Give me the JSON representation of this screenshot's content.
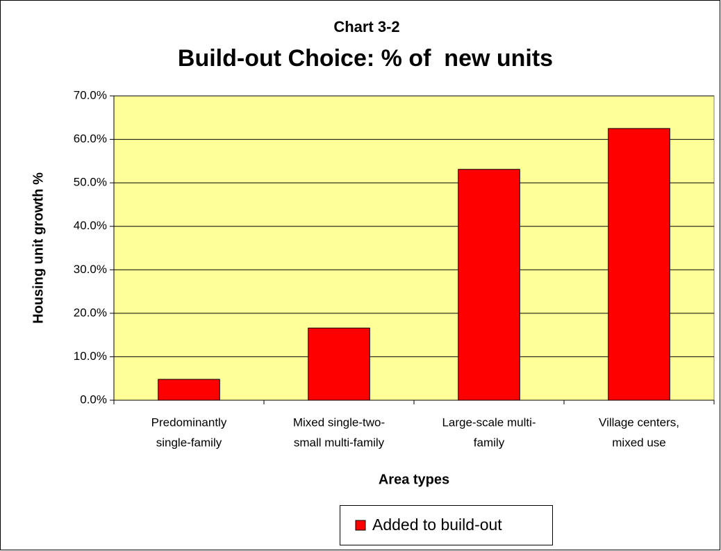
{
  "chart_data": {
    "type": "bar",
    "subtitle": "Chart 3-2",
    "title": "Build-out Choice: % of  new units",
    "y_label": "Housing unit growth %",
    "x_label": "Area types",
    "categories": [
      [
        "Predominantly",
        "single-family"
      ],
      [
        "Mixed single-two-",
        "small multi-family"
      ],
      [
        "Large-scale multi-",
        "family"
      ],
      [
        "Village centers,",
        "mixed use"
      ]
    ],
    "series": [
      {
        "name": "Added to build-out",
        "color": "#ff0000",
        "values": [
          4.8,
          16.6,
          53.1,
          62.5
        ]
      }
    ],
    "ylim": [
      0,
      70
    ],
    "yticks": [
      {
        "value": 0,
        "label": "0.0%"
      },
      {
        "value": 10,
        "label": "10.0%"
      },
      {
        "value": 20,
        "label": "20.0%"
      },
      {
        "value": 30,
        "label": "30.0%"
      },
      {
        "value": 40,
        "label": "40.0%"
      },
      {
        "value": 50,
        "label": "50.0%"
      },
      {
        "value": 60,
        "label": "60.0%"
      },
      {
        "value": 70,
        "label": "70.0%"
      }
    ],
    "grid": true,
    "plot_background": "#ffff99",
    "legend": "bottom"
  }
}
